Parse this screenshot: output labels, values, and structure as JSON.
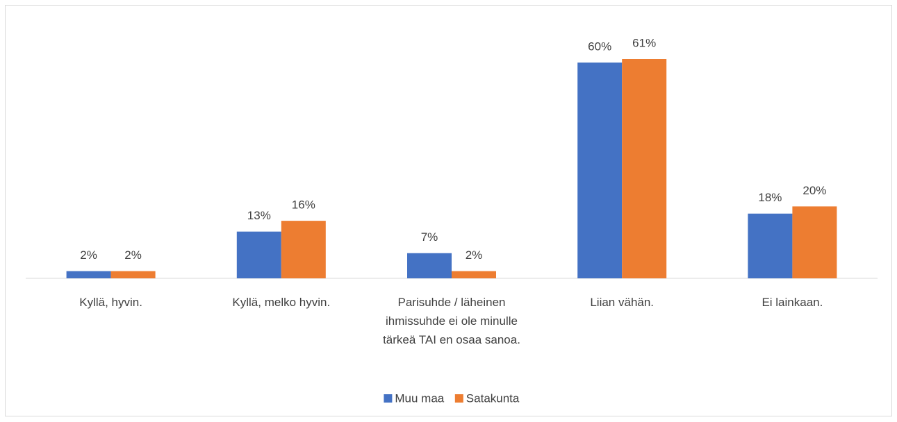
{
  "chart_data": {
    "type": "bar",
    "categories": [
      "Kyllä, hyvin.",
      "Kyllä, melko hyvin.",
      "Parisuhde / läheinen ihmissuhde ei ole minulle tärkeä TAI en osaa sanoa.",
      "Liian vähän.",
      "Ei lainkaan."
    ],
    "series": [
      {
        "name": "Muu maa",
        "color": "#4472c4",
        "values": [
          2,
          13,
          7,
          60,
          18
        ],
        "value_labels": [
          "2%",
          "13%",
          "7%",
          "60%",
          "18%"
        ]
      },
      {
        "name": "Satakunta",
        "color": "#ed7d31",
        "values": [
          2,
          16,
          2,
          61,
          20
        ],
        "value_labels": [
          "2%",
          "16%",
          "2%",
          "61%",
          "20%"
        ]
      }
    ],
    "legend": "bottom"
  }
}
